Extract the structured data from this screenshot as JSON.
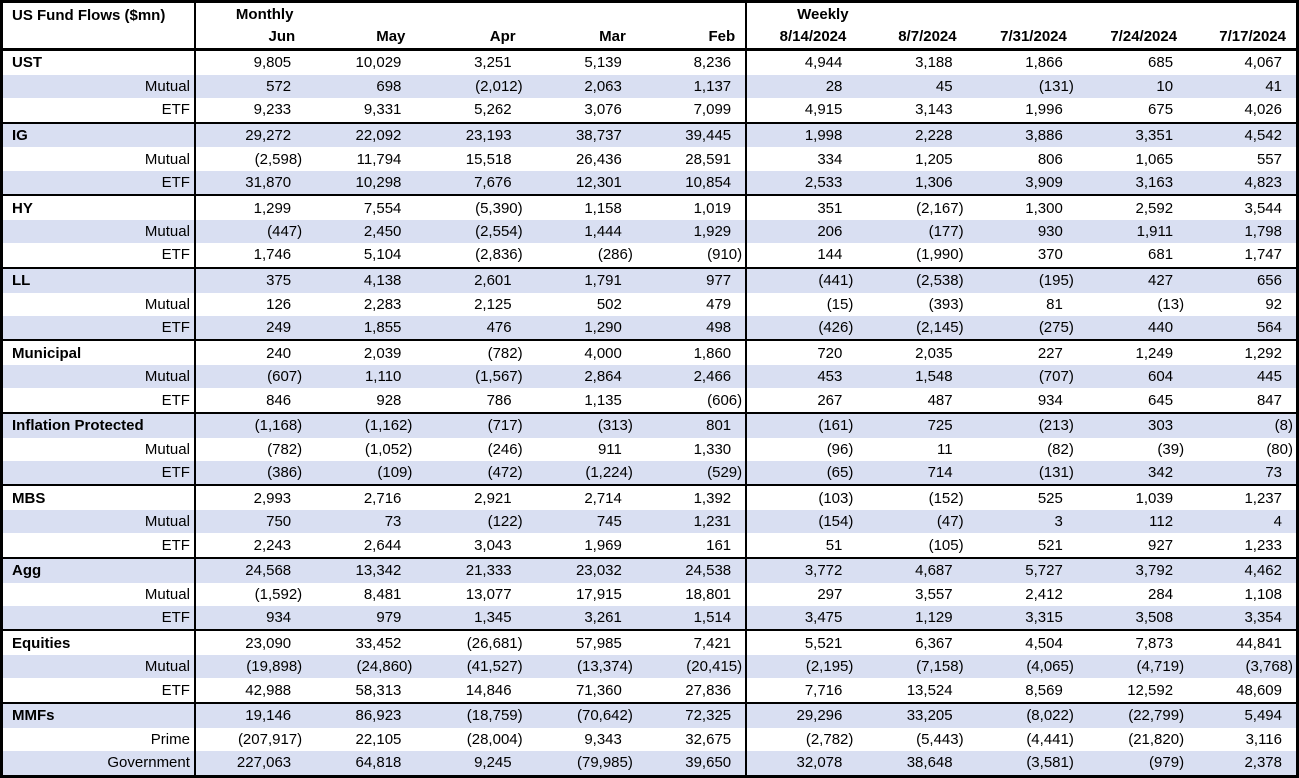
{
  "table": {
    "title": "US Fund Flows ($mn)",
    "monthly_label": "Monthly",
    "weekly_label": "Weekly",
    "monthly_columns": [
      "Jun",
      "May",
      "Apr",
      "Mar",
      "Feb"
    ],
    "weekly_columns": [
      "8/14/2024",
      "8/7/2024",
      "7/31/2024",
      "7/24/2024",
      "7/17/2024"
    ],
    "colors": {
      "band_row": "#D9DFF2",
      "border": "#000000",
      "background": "#FFFFFF",
      "text": "#000000"
    },
    "groups": [
      {
        "rows": [
          {
            "label": "UST",
            "monthly": [
              "9,805",
              "10,029",
              "3,251",
              "5,139",
              "8,236"
            ],
            "weekly": [
              "4,944",
              "3,188",
              "1,866",
              "685",
              "4,067"
            ]
          },
          {
            "label": "Mutual",
            "monthly": [
              "572",
              "698",
              "(2,012)",
              "2,063",
              "1,137"
            ],
            "weekly": [
              "28",
              "45",
              "(131)",
              "10",
              "41"
            ]
          },
          {
            "label": "ETF",
            "monthly": [
              "9,233",
              "9,331",
              "5,262",
              "3,076",
              "7,099"
            ],
            "weekly": [
              "4,915",
              "3,143",
              "1,996",
              "675",
              "4,026"
            ]
          }
        ]
      },
      {
        "rows": [
          {
            "label": "IG",
            "monthly": [
              "29,272",
              "22,092",
              "23,193",
              "38,737",
              "39,445"
            ],
            "weekly": [
              "1,998",
              "2,228",
              "3,886",
              "3,351",
              "4,542"
            ]
          },
          {
            "label": "Mutual",
            "monthly": [
              "(2,598)",
              "11,794",
              "15,518",
              "26,436",
              "28,591"
            ],
            "weekly": [
              "334",
              "1,205",
              "806",
              "1,065",
              "557"
            ]
          },
          {
            "label": "ETF",
            "monthly": [
              "31,870",
              "10,298",
              "7,676",
              "12,301",
              "10,854"
            ],
            "weekly": [
              "2,533",
              "1,306",
              "3,909",
              "3,163",
              "4,823"
            ]
          }
        ]
      },
      {
        "rows": [
          {
            "label": "HY",
            "monthly": [
              "1,299",
              "7,554",
              "(5,390)",
              "1,158",
              "1,019"
            ],
            "weekly": [
              "351",
              "(2,167)",
              "1,300",
              "2,592",
              "3,544"
            ]
          },
          {
            "label": "Mutual",
            "monthly": [
              "(447)",
              "2,450",
              "(2,554)",
              "1,444",
              "1,929"
            ],
            "weekly": [
              "206",
              "(177)",
              "930",
              "1,911",
              "1,798"
            ]
          },
          {
            "label": "ETF",
            "monthly": [
              "1,746",
              "5,104",
              "(2,836)",
              "(286)",
              "(910)"
            ],
            "weekly": [
              "144",
              "(1,990)",
              "370",
              "681",
              "1,747"
            ]
          }
        ]
      },
      {
        "rows": [
          {
            "label": "LL",
            "monthly": [
              "375",
              "4,138",
              "2,601",
              "1,791",
              "977"
            ],
            "weekly": [
              "(441)",
              "(2,538)",
              "(195)",
              "427",
              "656"
            ]
          },
          {
            "label": "Mutual",
            "monthly": [
              "126",
              "2,283",
              "2,125",
              "502",
              "479"
            ],
            "weekly": [
              "(15)",
              "(393)",
              "81",
              "(13)",
              "92"
            ]
          },
          {
            "label": "ETF",
            "monthly": [
              "249",
              "1,855",
              "476",
              "1,290",
              "498"
            ],
            "weekly": [
              "(426)",
              "(2,145)",
              "(275)",
              "440",
              "564"
            ]
          }
        ]
      },
      {
        "rows": [
          {
            "label": "Municipal",
            "monthly": [
              "240",
              "2,039",
              "(782)",
              "4,000",
              "1,860"
            ],
            "weekly": [
              "720",
              "2,035",
              "227",
              "1,249",
              "1,292"
            ]
          },
          {
            "label": "Mutual",
            "monthly": [
              "(607)",
              "1,110",
              "(1,567)",
              "2,864",
              "2,466"
            ],
            "weekly": [
              "453",
              "1,548",
              "(707)",
              "604",
              "445"
            ]
          },
          {
            "label": "ETF",
            "monthly": [
              "846",
              "928",
              "786",
              "1,135",
              "(606)"
            ],
            "weekly": [
              "267",
              "487",
              "934",
              "645",
              "847"
            ]
          }
        ]
      },
      {
        "rows": [
          {
            "label": "Inflation Protected",
            "monthly": [
              "(1,168)",
              "(1,162)",
              "(717)",
              "(313)",
              "801"
            ],
            "weekly": [
              "(161)",
              "725",
              "(213)",
              "303",
              "(8)"
            ]
          },
          {
            "label": "Mutual",
            "monthly": [
              "(782)",
              "(1,052)",
              "(246)",
              "911",
              "1,330"
            ],
            "weekly": [
              "(96)",
              "11",
              "(82)",
              "(39)",
              "(80)"
            ]
          },
          {
            "label": "ETF",
            "monthly": [
              "(386)",
              "(109)",
              "(472)",
              "(1,224)",
              "(529)"
            ],
            "weekly": [
              "(65)",
              "714",
              "(131)",
              "342",
              "73"
            ]
          }
        ]
      },
      {
        "rows": [
          {
            "label": "MBS",
            "monthly": [
              "2,993",
              "2,716",
              "2,921",
              "2,714",
              "1,392"
            ],
            "weekly": [
              "(103)",
              "(152)",
              "525",
              "1,039",
              "1,237"
            ]
          },
          {
            "label": "Mutual",
            "monthly": [
              "750",
              "73",
              "(122)",
              "745",
              "1,231"
            ],
            "weekly": [
              "(154)",
              "(47)",
              "3",
              "112",
              "4"
            ]
          },
          {
            "label": "ETF",
            "monthly": [
              "2,243",
              "2,644",
              "3,043",
              "1,969",
              "161"
            ],
            "weekly": [
              "51",
              "(105)",
              "521",
              "927",
              "1,233"
            ]
          }
        ]
      },
      {
        "rows": [
          {
            "label": "Agg",
            "monthly": [
              "24,568",
              "13,342",
              "21,333",
              "23,032",
              "24,538"
            ],
            "weekly": [
              "3,772",
              "4,687",
              "5,727",
              "3,792",
              "4,462"
            ]
          },
          {
            "label": "Mutual",
            "monthly": [
              "(1,592)",
              "8,481",
              "13,077",
              "17,915",
              "18,801"
            ],
            "weekly": [
              "297",
              "3,557",
              "2,412",
              "284",
              "1,108"
            ]
          },
          {
            "label": "ETF",
            "monthly": [
              "934",
              "979",
              "1,345",
              "3,261",
              "1,514"
            ],
            "weekly": [
              "3,475",
              "1,129",
              "3,315",
              "3,508",
              "3,354"
            ]
          }
        ]
      },
      {
        "rows": [
          {
            "label": "Equities",
            "monthly": [
              "23,090",
              "33,452",
              "(26,681)",
              "57,985",
              "7,421"
            ],
            "weekly": [
              "5,521",
              "6,367",
              "4,504",
              "7,873",
              "44,841"
            ]
          },
          {
            "label": "Mutual",
            "monthly": [
              "(19,898)",
              "(24,860)",
              "(41,527)",
              "(13,374)",
              "(20,415)"
            ],
            "weekly": [
              "(2,195)",
              "(7,158)",
              "(4,065)",
              "(4,719)",
              "(3,768)"
            ]
          },
          {
            "label": "ETF",
            "monthly": [
              "42,988",
              "58,313",
              "14,846",
              "71,360",
              "27,836"
            ],
            "weekly": [
              "7,716",
              "13,524",
              "8,569",
              "12,592",
              "48,609"
            ]
          }
        ]
      },
      {
        "rows": [
          {
            "label": "MMFs",
            "monthly": [
              "19,146",
              "86,923",
              "(18,759)",
              "(70,642)",
              "72,325"
            ],
            "weekly": [
              "29,296",
              "33,205",
              "(8,022)",
              "(22,799)",
              "5,494"
            ]
          },
          {
            "label": "Prime",
            "monthly": [
              "(207,917)",
              "22,105",
              "(28,004)",
              "9,343",
              "32,675"
            ],
            "weekly": [
              "(2,782)",
              "(5,443)",
              "(4,441)",
              "(21,820)",
              "3,116"
            ]
          },
          {
            "label": "Government",
            "monthly": [
              "227,063",
              "64,818",
              "9,245",
              "(79,985)",
              "39,650"
            ],
            "weekly": [
              "32,078",
              "38,648",
              "(3,581)",
              "(979)",
              "2,378"
            ]
          }
        ]
      }
    ]
  }
}
